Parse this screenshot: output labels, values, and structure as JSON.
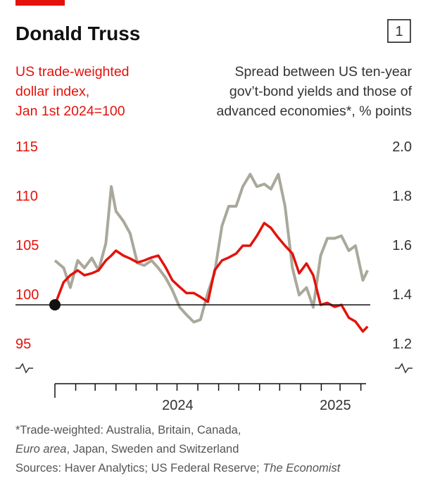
{
  "chart_data": {
    "type": "line",
    "title": "Donald Truss",
    "chart_number": "1",
    "left_axis_title": [
      "US trade-weighted",
      "dollar index,",
      "Jan 1st 2024=100"
    ],
    "right_axis_title": [
      "Spread between US ten-year",
      "gov’t-bond yields and those of",
      "advanced economies*, % points"
    ],
    "x": [
      "2024-01-01",
      "2024-01-14",
      "2024-01-24",
      "2024-02-04",
      "2024-02-14",
      "2024-02-25",
      "2024-03-06",
      "2024-03-17",
      "2024-03-25",
      "2024-04-01",
      "2024-04-12",
      "2024-04-22",
      "2024-05-03",
      "2024-05-13",
      "2024-05-24",
      "2024-06-03",
      "2024-06-14",
      "2024-06-24",
      "2024-07-05",
      "2024-07-15",
      "2024-07-26",
      "2024-08-05",
      "2024-08-16",
      "2024-08-26",
      "2024-09-06",
      "2024-09-16",
      "2024-09-27",
      "2024-10-07",
      "2024-10-18",
      "2024-10-28",
      "2024-11-08",
      "2024-11-18",
      "2024-11-29",
      "2024-12-09",
      "2024-12-20",
      "2024-12-30",
      "2025-01-10",
      "2025-01-20",
      "2025-01-31",
      "2025-02-10",
      "2025-02-21",
      "2025-03-03",
      "2025-03-14",
      "2025-03-24",
      "2025-04-04",
      "2025-04-11"
    ],
    "series": [
      {
        "name": "US trade-weighted dollar index",
        "color": "#e3120b",
        "axis": "y",
        "values": [
          100,
          102.3,
          103,
          103.5,
          103,
          103.2,
          103.5,
          104.5,
          105,
          105.5,
          105,
          104.7,
          104.3,
          104.5,
          104.8,
          105,
          103.8,
          102.5,
          101.8,
          101.2,
          101.2,
          100.8,
          100.3,
          103.5,
          104.5,
          104.8,
          105.2,
          106,
          106,
          107,
          108.3,
          107.8,
          106.8,
          106,
          105.2,
          103.2,
          104.2,
          103,
          100,
          100.2,
          99.8,
          100,
          98.7,
          98.3,
          97.3,
          97.8
        ]
      },
      {
        "name": "Bond-yield spread",
        "color": "#aaa89b",
        "axis": "y2",
        "values": [
          1.58,
          1.55,
          1.47,
          1.58,
          1.55,
          1.59,
          1.54,
          1.65,
          1.88,
          1.78,
          1.74,
          1.69,
          1.57,
          1.56,
          1.58,
          1.55,
          1.51,
          1.46,
          1.39,
          1.36,
          1.33,
          1.34,
          1.45,
          1.53,
          1.72,
          1.8,
          1.8,
          1.88,
          1.93,
          1.88,
          1.89,
          1.87,
          1.93,
          1.8,
          1.55,
          1.44,
          1.47,
          1.39,
          1.6,
          1.67,
          1.67,
          1.68,
          1.62,
          1.64,
          1.5,
          1.54
        ]
      }
    ],
    "xlim": [
      "2024-01-01",
      "2025-04-15"
    ],
    "xticks": [
      "2024-01-01",
      "2024-02-01",
      "2024-03-01",
      "2024-04-01",
      "2024-05-01",
      "2024-06-01",
      "2024-07-01",
      "2024-08-01",
      "2024-09-01",
      "2024-10-01",
      "2024-11-01",
      "2024-12-01",
      "2025-01-01",
      "2025-02-01",
      "2025-03-01",
      "2025-04-01"
    ],
    "xtick_labels": [
      {
        "value": "2024-01-01",
        "label": "2024"
      },
      {
        "value": "2025-01-01",
        "label": "2025"
      }
    ],
    "ylim": [
      93.5,
      116
    ],
    "yticks": [
      95,
      100,
      105,
      110,
      115
    ],
    "y2lim": [
      1.14,
      2.04
    ],
    "y2ticks": [
      1.2,
      1.4,
      1.6,
      1.8,
      {
        "value": 2,
        "label": "2.0"
      }
    ],
    "baseline": 100,
    "footnote": [
      [
        "*Trade-weighted: Australia, Britain, Canada,"
      ],
      [
        "Euro area",
        ", Japan, Sweden and Switzerland"
      ],
      [
        "Sources: Haver Analytics; US Federal Reserve; ",
        "The Economist"
      ]
    ]
  }
}
